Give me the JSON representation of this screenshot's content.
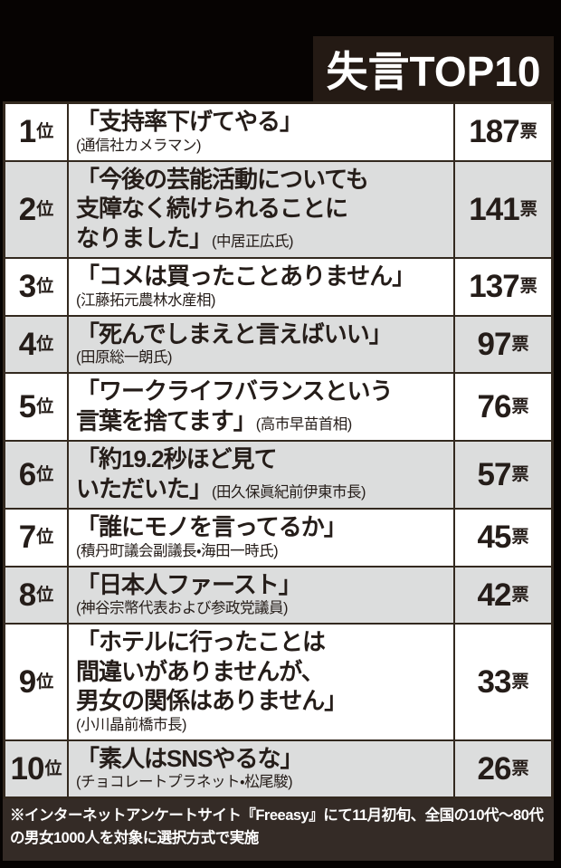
{
  "title": "失言TOP10",
  "footer": {
    "text": "※インターネットアンケートサイト『Freeasy』にて11月初旬、全国の10代～80代の男女1000人を対象に選択方式で実施"
  },
  "table": {
    "rank_suffix": "位",
    "votes_suffix": "票",
    "rows": [
      {
        "rank": "1",
        "votes": "187",
        "shaded": false,
        "lines": [
          {
            "quote": "「支持率下げてやる」"
          },
          {
            "attribution": "(通信社カメラマン)"
          }
        ]
      },
      {
        "rank": "2",
        "votes": "141",
        "shaded": true,
        "lines": [
          {
            "quote": "「今後の芸能活動についても"
          },
          {
            "quote": "支障なく続けられることに"
          },
          {
            "quote": "なりました」",
            "attribution": "(中居正広氏)"
          }
        ]
      },
      {
        "rank": "3",
        "votes": "137",
        "shaded": false,
        "lines": [
          {
            "quote": "「コメは買ったことありません」"
          },
          {
            "attribution": "(江藤拓元農林水産相)"
          }
        ]
      },
      {
        "rank": "4",
        "votes": "97",
        "shaded": true,
        "lines": [
          {
            "quote": "「死んでしまえと言えばいい」"
          },
          {
            "attribution": "(田原総一朗氏)"
          }
        ]
      },
      {
        "rank": "5",
        "votes": "76",
        "shaded": false,
        "lines": [
          {
            "quote": "「ワークライフバランスという"
          },
          {
            "quote": "言葉を捨てます」",
            "attribution": "(高市早苗首相)"
          }
        ]
      },
      {
        "rank": "6",
        "votes": "57",
        "shaded": true,
        "lines": [
          {
            "quote": "「約19.2秒ほど見て"
          },
          {
            "quote": "いただいた」",
            "attribution": "(田久保眞紀前伊東市長)"
          }
        ]
      },
      {
        "rank": "7",
        "votes": "45",
        "shaded": false,
        "lines": [
          {
            "quote": "「誰にモノを言ってるか」"
          },
          {
            "attribution": "(積丹町議会副議長・海田一時氏)"
          }
        ]
      },
      {
        "rank": "8",
        "votes": "42",
        "shaded": true,
        "lines": [
          {
            "quote": "「日本人ファースト」"
          },
          {
            "attribution": "(神谷宗幣代表および参政党議員)"
          }
        ]
      },
      {
        "rank": "9",
        "votes": "33",
        "shaded": false,
        "lines": [
          {
            "quote": "「ホテルに行ったことは"
          },
          {
            "quote": "間違いがありませんが、"
          },
          {
            "quote": "男女の関係はありません」"
          },
          {
            "attribution": "(小川晶前橋市長)"
          }
        ]
      },
      {
        "rank": "10",
        "votes": "26",
        "shaded": true,
        "lines": [
          {
            "quote": "「素人はSNSやるな」"
          },
          {
            "attribution": "(チョコレートプラネット・松尾駿)"
          }
        ]
      }
    ]
  },
  "colors": {
    "page_background": "#060302",
    "title_background": "#241a14",
    "title_text": "#ffffff",
    "row_white": "#ffffff",
    "row_shaded": "#dcdddd",
    "border": "#33291f",
    "body_text": "#251d19",
    "footer_background": "#342b26",
    "footer_text": "#ffffff"
  },
  "chart_data": {
    "type": "table",
    "title": "失言TOP10",
    "rows": [
      {
        "rank": 1,
        "quote": "支持率下げてやる",
        "speaker": "通信社カメラマン",
        "votes": 187
      },
      {
        "rank": 2,
        "quote": "今後の芸能活動についても支障なく続けられることになりました",
        "speaker": "中居正広氏",
        "votes": 141
      },
      {
        "rank": 3,
        "quote": "コメは買ったことありません",
        "speaker": "江藤拓元農林水産相",
        "votes": 137
      },
      {
        "rank": 4,
        "quote": "死んでしまえと言えばいい",
        "speaker": "田原総一朗氏",
        "votes": 97
      },
      {
        "rank": 5,
        "quote": "ワークライフバランスという言葉を捨てます",
        "speaker": "高市早苗首相",
        "votes": 76
      },
      {
        "rank": 6,
        "quote": "約19.2秒ほど見ていただいた",
        "speaker": "田久保眞紀前伊東市長",
        "votes": 57
      },
      {
        "rank": 7,
        "quote": "誰にモノを言ってるか",
        "speaker": "積丹町議会副議長・海田一時氏",
        "votes": 45
      },
      {
        "rank": 8,
        "quote": "日本人ファースト",
        "speaker": "神谷宗幣代表および参政党議員",
        "votes": 42
      },
      {
        "rank": 9,
        "quote": "ホテルに行ったことは間違いがありませんが、男女の関係はありません",
        "speaker": "小川晶前橋市長",
        "votes": 33
      },
      {
        "rank": 10,
        "quote": "素人はSNSやるな",
        "speaker": "チョコレートプラネット・松尾駿",
        "votes": 26
      }
    ],
    "footnote": "※インターネットアンケートサイト『Freeasy』にて11月初旬、全国の10代～80代の男女1000人を対象に選択方式で実施"
  }
}
